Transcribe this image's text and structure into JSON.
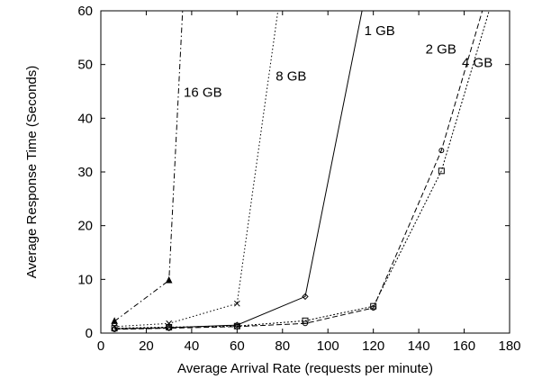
{
  "chart_data": {
    "type": "line",
    "xlabel": "Average Arrival Rate (requests per minute)",
    "ylabel": "Average Response Time (Seconds)",
    "xlim": [
      0,
      180
    ],
    "ylim": [
      0,
      60
    ],
    "xticks": [
      0,
      20,
      40,
      60,
      80,
      100,
      120,
      140,
      160,
      180
    ],
    "yticks": [
      0,
      10,
      20,
      30,
      40,
      50,
      60
    ],
    "grid": false,
    "legend": "inline labels next to curves",
    "series": [
      {
        "name": "16 GB",
        "marker": "triangle",
        "dash": "dash-dot",
        "x": [
          6,
          30,
          36
        ],
        "y": [
          2.2,
          9.8,
          60
        ]
      },
      {
        "name": "8 GB",
        "marker": "x",
        "dash": "dotted",
        "x": [
          6,
          30,
          60,
          78
        ],
        "y": [
          1.2,
          1.8,
          5.5,
          60
        ]
      },
      {
        "name": "1 GB",
        "marker": "diamond",
        "dash": "solid",
        "x": [
          6,
          30,
          60,
          90,
          115
        ],
        "y": [
          0.8,
          1.0,
          1.5,
          6.8,
          60
        ]
      },
      {
        "name": "2 GB",
        "marker": "circle",
        "dash": "dashed",
        "x": [
          6,
          30,
          60,
          90,
          120,
          150,
          168
        ],
        "y": [
          0.7,
          0.9,
          1.2,
          1.8,
          4.7,
          34,
          60
        ]
      },
      {
        "name": "4 GB",
        "marker": "square",
        "dash": "fine-dotted",
        "x": [
          6,
          30,
          60,
          90,
          120,
          150,
          171
        ],
        "y": [
          0.9,
          1.1,
          1.3,
          2.3,
          5.0,
          30.2,
          60
        ]
      }
    ],
    "labels": [
      {
        "text": "16 GB",
        "x": 36.5,
        "y": 44
      },
      {
        "text": "8 GB",
        "x": 77,
        "y": 47
      },
      {
        "text": "1 GB",
        "x": 116,
        "y": 55.5
      },
      {
        "text": "2 GB",
        "x": 143,
        "y": 52
      },
      {
        "text": "4 GB",
        "x": 159,
        "y": 49.5
      }
    ]
  }
}
